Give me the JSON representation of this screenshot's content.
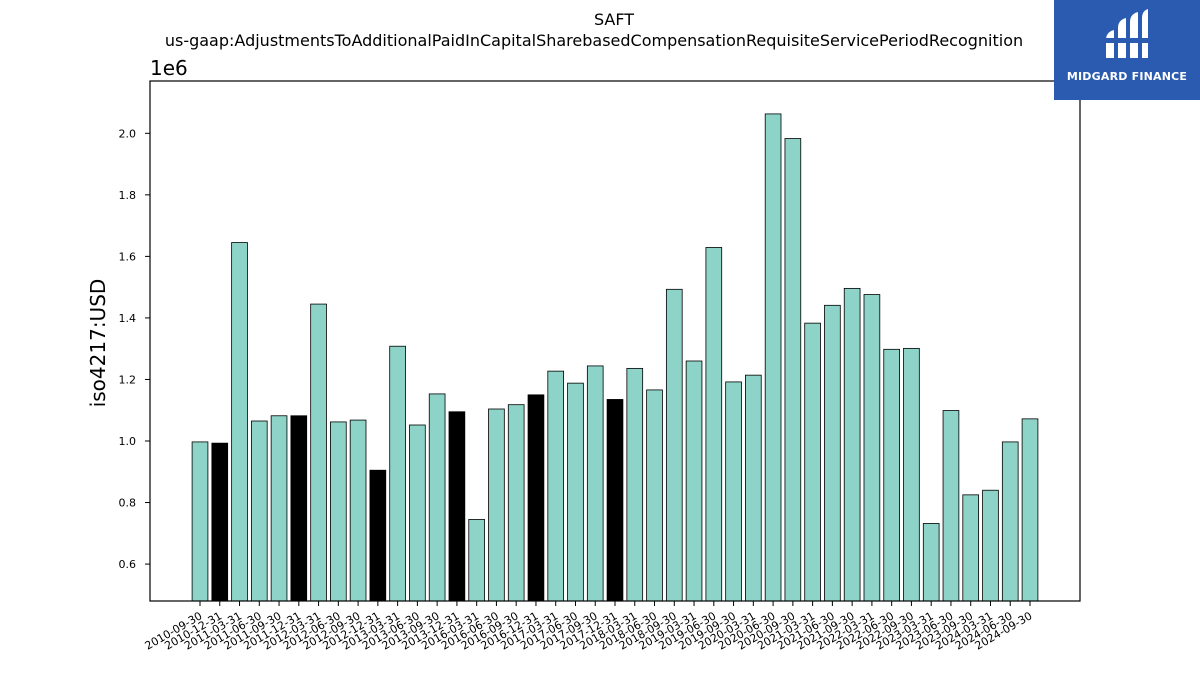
{
  "chart_data": {
    "type": "bar",
    "title": "SAFT",
    "subtitle": "us-gaap:AdjustmentsToAdditionalPaidInCapitalSharebasedCompensationRequisiteServicePeriodRecognition",
    "ylabel": "iso4217:USD",
    "xlabel": "",
    "y_multiplier_label": "1e6",
    "ylim": [
      0.48,
      2.17
    ],
    "yticks": [
      "0.6",
      "0.8",
      "1.0",
      "1.2",
      "1.4",
      "1.6",
      "1.8",
      "2.0"
    ],
    "grid": false,
    "categories": [
      "2010-09-30",
      "2010-12-31",
      "2011-03-31",
      "2011-06-30",
      "2011-09-30",
      "2011-12-31",
      "2012-03-31",
      "2012-06-30",
      "2012-09-30",
      "2012-12-31",
      "2013-03-31",
      "2013-06-30",
      "2013-09-30",
      "2013-12-31",
      "2016-03-31",
      "2016-06-30",
      "2016-09-30",
      "2016-12-31",
      "2017-03-31",
      "2017-06-30",
      "2017-09-30",
      "2017-12-31",
      "2018-03-31",
      "2018-06-30",
      "2018-09-30",
      "2019-03-31",
      "2019-06-30",
      "2019-09-30",
      "2020-03-31",
      "2020-06-30",
      "2020-09-30",
      "2021-03-31",
      "2021-06-30",
      "2021-09-30",
      "2022-03-31",
      "2022-06-30",
      "2022-09-30",
      "2023-03-31",
      "2023-06-30",
      "2023-09-30",
      "2024-03-31",
      "2024-06-30",
      "2024-09-30"
    ],
    "values": [
      0.997,
      0.993,
      1.645,
      1.065,
      1.082,
      1.082,
      1.445,
      1.062,
      1.068,
      0.905,
      1.308,
      1.052,
      1.153,
      1.095,
      0.745,
      1.104,
      1.118,
      1.15,
      1.227,
      1.188,
      1.244,
      1.135,
      1.236,
      1.166,
      1.493,
      1.26,
      1.629,
      1.192,
      1.214,
      2.063,
      1.983,
      1.383,
      1.441,
      1.496,
      1.476,
      1.298,
      1.301,
      0.732,
      1.099,
      0.825,
      0.84,
      0.997,
      1.072
    ],
    "highlight": [
      false,
      true,
      false,
      false,
      false,
      true,
      false,
      false,
      false,
      true,
      false,
      false,
      false,
      true,
      false,
      false,
      false,
      true,
      false,
      false,
      false,
      true,
      false,
      false,
      false,
      false,
      false,
      false,
      false,
      false,
      false,
      false,
      false,
      false,
      false,
      false,
      false,
      false,
      false,
      false,
      false,
      false,
      false
    ],
    "colors": {
      "bar": "#8dd3c7",
      "highlight": "#000000",
      "edge": "#000000"
    }
  },
  "logo": {
    "text": "MIDGARD FINANCE",
    "background": "#2a5bb0"
  }
}
